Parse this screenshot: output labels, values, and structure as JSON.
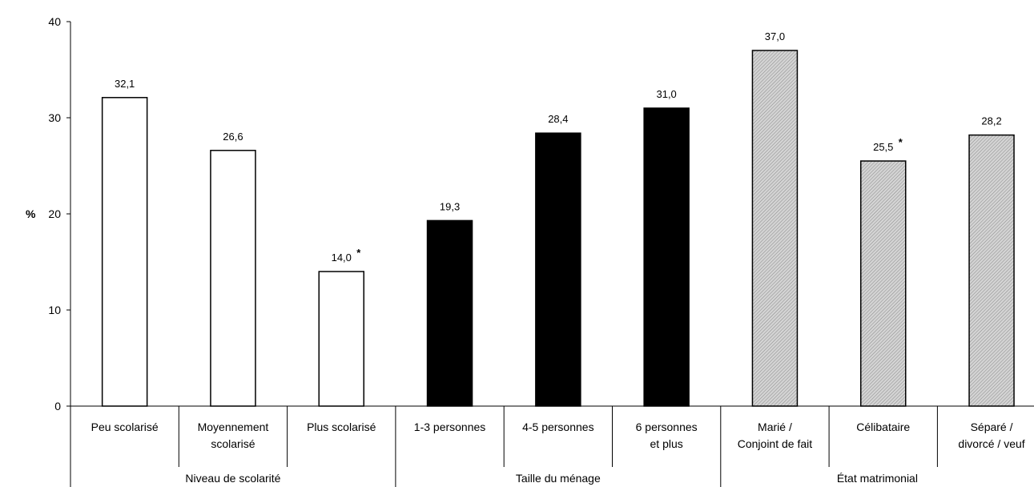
{
  "chart_data": {
    "type": "bar",
    "ylabel": "%",
    "ylim": [
      0,
      40
    ],
    "yticks": [
      "0",
      "10",
      "20",
      "30",
      "40"
    ],
    "groups": [
      {
        "name": "Niveau de scolarité",
        "fill": "white",
        "categories": [
          {
            "label": [
              "Peu scolarisé"
            ],
            "value": 32.1,
            "data_label": "32,1",
            "star": ""
          },
          {
            "label": [
              "Moyennement",
              "scolarisé"
            ],
            "value": 26.6,
            "data_label": "26,6",
            "star": ""
          },
          {
            "label": [
              "Plus scolarisé"
            ],
            "value": 14.0,
            "data_label": "14,0",
            "star": "*"
          }
        ]
      },
      {
        "name": "Taille du ménage",
        "fill": "black",
        "categories": [
          {
            "label": [
              "1-3 personnes"
            ],
            "value": 19.3,
            "data_label": "19,3",
            "star": ""
          },
          {
            "label": [
              "4-5 personnes"
            ],
            "value": 28.4,
            "data_label": "28,4",
            "star": ""
          },
          {
            "label": [
              "6 personnes",
              "et plus"
            ],
            "value": 31.0,
            "data_label": "31,0",
            "star": ""
          }
        ]
      },
      {
        "name": "État matrimonial",
        "fill": "hatched-gray",
        "categories": [
          {
            "label": [
              "Marié /",
              "Conjoint de fait"
            ],
            "value": 37.0,
            "data_label": "37,0",
            "star": ""
          },
          {
            "label": [
              "Célibataire"
            ],
            "value": 25.5,
            "data_label": "25,5",
            "star": "*"
          },
          {
            "label": [
              "Séparé /",
              "divorcé / veuf"
            ],
            "value": 28.2,
            "data_label": "28,2",
            "star": ""
          }
        ]
      }
    ],
    "colors": {
      "white": "#ffffff",
      "black": "#000000",
      "hatched-gray": "#c8c8c8",
      "axis": "#000000"
    }
  }
}
